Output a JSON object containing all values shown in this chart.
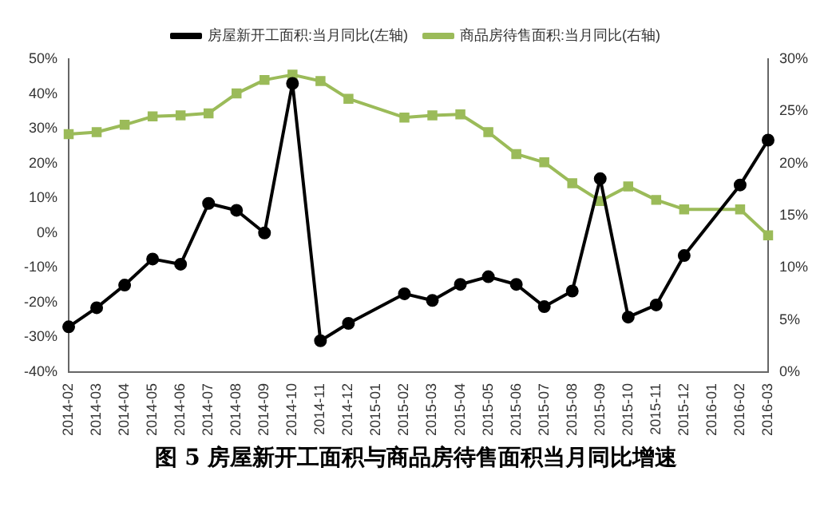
{
  "chart_data": {
    "type": "line",
    "title": "图 5 房屋新开工面积与商品房待售面积当月同比增速",
    "categories": [
      "2014-02",
      "2014-03",
      "2014-04",
      "2014-05",
      "2014-06",
      "2014-07",
      "2014-08",
      "2014-09",
      "2014-10",
      "2014-11",
      "2014-12",
      "2015-01",
      "2015-02",
      "2015-03",
      "2015-04",
      "2015-05",
      "2015-06",
      "2015-07",
      "2015-08",
      "2015-09",
      "2015-10",
      "2015-11",
      "2015-12",
      "2016-01",
      "2016-02",
      "2016-03"
    ],
    "series": [
      {
        "name": "房屋新开工面积:当月同比(左轴)",
        "color": "#000000",
        "marker": "circle",
        "values": [
          -27,
          -21.5,
          -15,
          -7.5,
          -9,
          8.5,
          6.5,
          0,
          43,
          -31,
          -26,
          null,
          -17.5,
          -19.4,
          -14.8,
          -12.6,
          -14.8,
          -21.2,
          -16.7,
          15.6,
          -24.2,
          -20.7,
          -6.5,
          null,
          13.8,
          26.7
        ]
      },
      {
        "name": "商品房待售面积:当月同比(右轴)",
        "color": "#9bbb59",
        "marker": "square",
        "axis": "y2",
        "values": [
          22.8,
          23,
          23.7,
          24.5,
          24.6,
          24.8,
          26.7,
          28,
          28.5,
          27.9,
          26.2,
          null,
          24.4,
          24.6,
          24.7,
          23,
          20.9,
          20.1,
          18.1,
          16.4,
          17.8,
          16.5,
          15.6,
          null,
          15.6,
          13.1
        ]
      }
    ],
    "ylim": [
      -40,
      50
    ],
    "yticks": [
      {
        "value": -40,
        "label": "-40%"
      },
      {
        "value": -30,
        "label": "-30%"
      },
      {
        "value": -20,
        "label": "-20%"
      },
      {
        "value": -10,
        "label": "-10%"
      },
      {
        "value": 0,
        "label": "0%"
      },
      {
        "value": 10,
        "label": "10%"
      },
      {
        "value": 20,
        "label": "20%"
      },
      {
        "value": 30,
        "label": "30%"
      },
      {
        "value": 40,
        "label": "40%"
      },
      {
        "value": 50,
        "label": "50%"
      }
    ],
    "y2lim": [
      0,
      30
    ],
    "y2ticks": [
      {
        "value": 0,
        "label": "0%"
      },
      {
        "value": 5,
        "label": "5%"
      },
      {
        "value": 10,
        "label": "10%"
      },
      {
        "value": 15,
        "label": "15%"
      },
      {
        "value": 20,
        "label": "20%"
      },
      {
        "value": 25,
        "label": "25%"
      },
      {
        "value": 30,
        "label": "30%"
      }
    ],
    "grid": false,
    "legend": "top",
    "line_style": "solid"
  }
}
